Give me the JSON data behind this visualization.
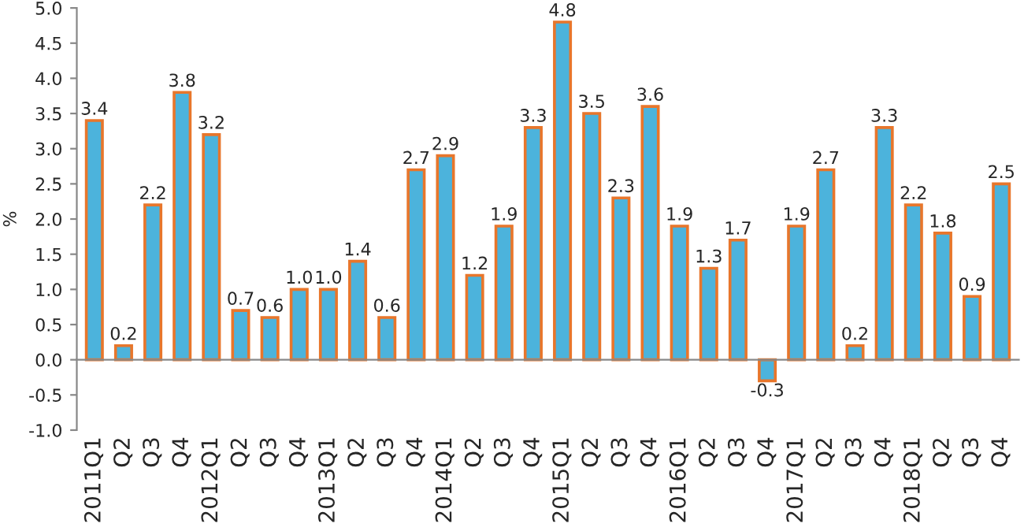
{
  "chart_data": {
    "type": "bar",
    "ylabel": "%",
    "categories": [
      "2011Q1",
      "Q2",
      "Q3",
      "Q4",
      "2012Q1",
      "Q2",
      "Q3",
      "Q4",
      "2013Q1",
      "Q2",
      "Q3",
      "Q4",
      "2014Q1",
      "Q2",
      "Q3",
      "Q4",
      "2015Q1",
      "Q2",
      "Q3",
      "Q4",
      "2016Q1",
      "Q2",
      "Q3",
      "Q4",
      "2017Q1",
      "Q2",
      "Q3",
      "Q4",
      "2018Q1",
      "Q2",
      "Q3",
      "Q4"
    ],
    "values": [
      3.4,
      0.2,
      2.2,
      3.8,
      3.2,
      0.7,
      0.6,
      1.0,
      1.0,
      1.4,
      0.6,
      2.7,
      2.9,
      1.2,
      1.9,
      3.3,
      4.8,
      3.5,
      2.3,
      3.6,
      1.9,
      1.3,
      1.7,
      -0.3,
      1.9,
      2.7,
      0.2,
      3.3,
      2.2,
      1.8,
      0.9,
      2.5
    ],
    "value_labels": [
      "3.4",
      "0.2",
      "2.2",
      "3.8",
      "3.2",
      "0.7",
      "0.6",
      "1.0",
      "1.0",
      "1.4",
      "0.6",
      "2.7",
      "2.9",
      "1.2",
      "1.9",
      "3.3",
      "4.8",
      "3.5",
      "2.3",
      "3.6",
      "1.9",
      "1.3",
      "1.7",
      "-0.3",
      "1.9",
      "2.7",
      "0.2",
      "3.3",
      "2.2",
      "1.8",
      "0.9",
      "2.5"
    ],
    "color": "#4cb3dc",
    "ylim": [
      -1.0,
      5.0
    ],
    "yticks": [
      {
        "value": -1.0,
        "label": "-1.0"
      },
      {
        "value": -0.5,
        "label": "-0.5"
      },
      {
        "value": 0.0,
        "label": "0.0"
      },
      {
        "value": 0.5,
        "label": "0.5"
      },
      {
        "value": 1.0,
        "label": "1.0"
      },
      {
        "value": 1.5,
        "label": "1.5"
      },
      {
        "value": 2.0,
        "label": "2.0"
      },
      {
        "value": 2.5,
        "label": "2.5"
      },
      {
        "value": 3.0,
        "label": "3.0"
      },
      {
        "value": 3.5,
        "label": "3.5"
      },
      {
        "value": 4.0,
        "label": "4.0"
      },
      {
        "value": 4.5,
        "label": "4.5"
      },
      {
        "value": 5.0,
        "label": "5.0"
      }
    ]
  }
}
